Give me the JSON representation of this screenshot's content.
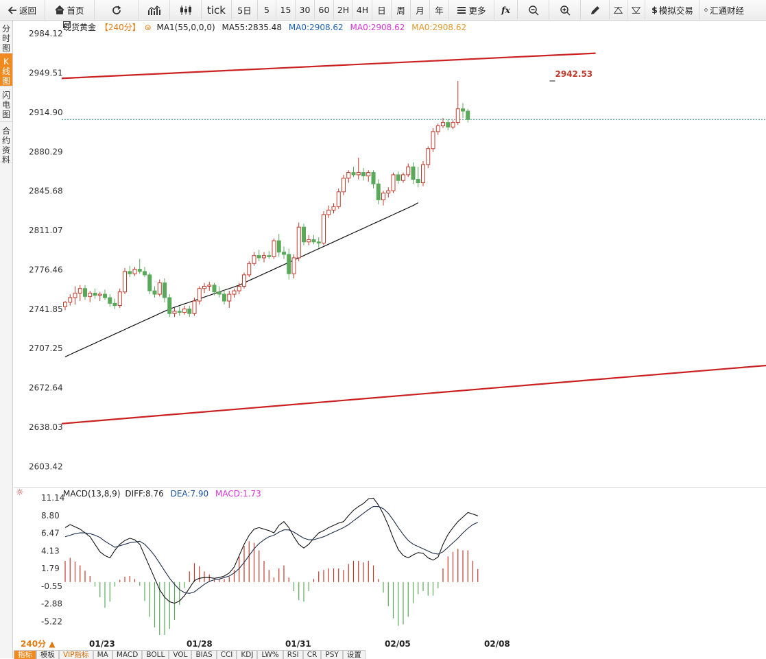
{
  "toolbar": {
    "back": "返回",
    "home": "首页",
    "tick": "tick",
    "periods": [
      "5日",
      "5",
      "15",
      "30",
      "60",
      "2H",
      "4H",
      "日",
      "周",
      "月",
      "年"
    ],
    "more": "更多",
    "fx": "fx",
    "sim_trade": "模拟交易",
    "broker": "汇通财经"
  },
  "sidebar": {
    "tabs": [
      {
        "label": "分时图",
        "active": false
      },
      {
        "label": "K线图",
        "active": true
      },
      {
        "label": "闪电图",
        "active": false
      },
      {
        "label": "合约资料",
        "active": false
      }
    ]
  },
  "main_legend": {
    "symbol": "现货黄金",
    "period": "【240分】",
    "ma1": "MA1(55,0,0,0)",
    "ma55": "MA55:2835.48",
    "ma0_a": "MA0:2908.62",
    "ma0_b": "MA0:2908.62",
    "ma0_c": "MA0:2908.62"
  },
  "macd_legend": {
    "name": "MACD(13,8,9)",
    "diff": "DIFF:8.76",
    "dea": "DEA:7.90",
    "macd": "MACD:1.73"
  },
  "high_label": "2942.53",
  "bottom": {
    "period_label": "240分 ▲",
    "dates": [
      "01/23",
      "01/28",
      "01/31",
      "02/05",
      "02/08"
    ],
    "indicator_tabs": [
      {
        "label": "指标",
        "active": true
      },
      {
        "label": "模板",
        "active": false
      },
      {
        "label": "VIP指标",
        "active": false,
        "vip": true
      },
      {
        "label": "MA",
        "active": false
      },
      {
        "label": "MACD",
        "active": false
      },
      {
        "label": "BOLL",
        "active": false
      },
      {
        "label": "VOL",
        "active": false
      },
      {
        "label": "BIAS",
        "active": false
      },
      {
        "label": "CCI",
        "active": false
      },
      {
        "label": "KDJ",
        "active": false
      },
      {
        "label": "LW%",
        "active": false
      },
      {
        "label": "RSI",
        "active": false
      },
      {
        "label": "CR",
        "active": false
      },
      {
        "label": "PSY",
        "active": false
      },
      {
        "label": "设置",
        "active": false
      }
    ]
  },
  "colors": {
    "up": "#c0392b",
    "down": "#5aa95a",
    "channel": "#cc1f1f",
    "ma0": "#1a5fb4",
    "macd": "#d633d6",
    "ma0c": "#e0982a",
    "accent": "#f08a1e"
  },
  "chart_data": [
    {
      "type": "candlestick",
      "title": "",
      "y_ticks": [
        2984.12,
        2949.51,
        2914.9,
        2880.29,
        2845.68,
        2811.07,
        2776.46,
        2741.85,
        2707.25,
        2672.64,
        2638.03,
        2603.42
      ],
      "ylim": [
        2585,
        2995
      ],
      "x_labels": [
        "01/23",
        "01/28",
        "01/31",
        "02/05",
        "02/08"
      ],
      "x_label_index": [
        6,
        26,
        47,
        68,
        89
      ],
      "current_price_line": 2908.62,
      "annotations": [
        {
          "text": "2942.53",
          "index": 98,
          "value": 2942.53
        }
      ],
      "channel_lines": [
        {
          "x_start": -0.7,
          "y_start": 2944.8,
          "x_end": 106.7,
          "y_end": 2966.9
        },
        {
          "x_start": -0.7,
          "y_start": 2641.2,
          "x_end": 150,
          "y_end": 2695.6
        }
      ],
      "ohlc": [
        [
          2744.0,
          2749.0,
          2741.0,
          2748.0
        ],
        [
          2748.0,
          2755.0,
          2745.0,
          2752.0
        ],
        [
          2752.0,
          2762.0,
          2746.0,
          2756.0
        ],
        [
          2756.0,
          2763.0,
          2749.0,
          2760.0
        ],
        [
          2760.0,
          2763.0,
          2750.0,
          2753.0
        ],
        [
          2753.0,
          2758.0,
          2748.0,
          2756.0
        ],
        [
          2756.0,
          2760.0,
          2751.0,
          2754.0
        ],
        [
          2754.0,
          2757.0,
          2749.0,
          2755.0
        ],
        [
          2755.0,
          2759.0,
          2750.0,
          2752.0
        ],
        [
          2752.0,
          2755.0,
          2744.0,
          2747.0
        ],
        [
          2747.0,
          2751.0,
          2742.0,
          2745.0
        ],
        [
          2745.0,
          2760.0,
          2743.0,
          2757.0
        ],
        [
          2757.0,
          2778.0,
          2755.0,
          2775.0
        ],
        [
          2775.0,
          2780.0,
          2770.0,
          2773.0
        ],
        [
          2773.0,
          2779.0,
          2771.0,
          2777.0
        ],
        [
          2777.0,
          2786.0,
          2773.0,
          2775.0
        ],
        [
          2775.0,
          2779.0,
          2770.0,
          2772.0
        ],
        [
          2772.0,
          2774.0,
          2755.0,
          2758.0
        ],
        [
          2758.0,
          2762.0,
          2752.0,
          2755.0
        ],
        [
          2755.0,
          2768.0,
          2753.0,
          2765.0
        ],
        [
          2765.0,
          2769.0,
          2748.0,
          2752.0
        ],
        [
          2752.0,
          2755.0,
          2735.0,
          2738.0
        ],
        [
          2738.0,
          2743.0,
          2735.0,
          2740.0
        ],
        [
          2740.0,
          2744.0,
          2736.0,
          2739.0
        ],
        [
          2739.0,
          2745.0,
          2737.0,
          2742.0
        ],
        [
          2742.0,
          2745.0,
          2735.0,
          2738.0
        ],
        [
          2738.0,
          2752.0,
          2736.0,
          2749.0
        ],
        [
          2749.0,
          2762.0,
          2746.0,
          2760.0
        ],
        [
          2760.0,
          2765.0,
          2756.0,
          2762.0
        ],
        [
          2762.0,
          2766.0,
          2758.0,
          2763.0
        ],
        [
          2763.0,
          2765.0,
          2754.0,
          2757.0
        ],
        [
          2757.0,
          2762.0,
          2752.0,
          2755.0
        ],
        [
          2755.0,
          2759.0,
          2746.0,
          2749.0
        ],
        [
          2749.0,
          2758.0,
          2743.0,
          2755.0
        ],
        [
          2755.0,
          2760.0,
          2752.0,
          2758.0
        ],
        [
          2758.0,
          2765.0,
          2755.0,
          2762.0
        ],
        [
          2762.0,
          2774.0,
          2760.0,
          2772.0
        ],
        [
          2772.0,
          2784.0,
          2770.0,
          2782.0
        ],
        [
          2782.0,
          2792.0,
          2780.0,
          2789.0
        ],
        [
          2789.0,
          2794.0,
          2784.0,
          2787.0
        ],
        [
          2787.0,
          2792.0,
          2783.0,
          2789.0
        ],
        [
          2789.0,
          2793.0,
          2786.0,
          2788.0
        ],
        [
          2788.0,
          2804.0,
          2786.0,
          2802.0
        ],
        [
          2802.0,
          2808.0,
          2788.0,
          2792.0
        ],
        [
          2792.0,
          2797.0,
          2786.0,
          2790.0
        ],
        [
          2790.0,
          2795.0,
          2768.0,
          2773.0
        ],
        [
          2773.0,
          2790.0,
          2769.0,
          2787.0
        ],
        [
          2787.0,
          2818.0,
          2784.0,
          2814.0
        ],
        [
          2814.0,
          2817.0,
          2798.0,
          2801.0
        ],
        [
          2801.0,
          2807.0,
          2798.0,
          2803.0
        ],
        [
          2803.0,
          2807.0,
          2799.0,
          2801.0
        ],
        [
          2801.0,
          2805.0,
          2796.0,
          2800.0
        ],
        [
          2800.0,
          2828.0,
          2798.0,
          2825.0
        ],
        [
          2825.0,
          2833.0,
          2822.0,
          2829.0
        ],
        [
          2829.0,
          2835.0,
          2826.0,
          2832.0
        ],
        [
          2832.0,
          2848.0,
          2830.0,
          2845.0
        ],
        [
          2845.0,
          2860.0,
          2842.0,
          2857.0
        ],
        [
          2857.0,
          2864.0,
          2853.0,
          2862.0
        ],
        [
          2862.0,
          2867.0,
          2858.0,
          2860.0
        ],
        [
          2860.0,
          2875.0,
          2856.0,
          2862.0
        ],
        [
          2862.0,
          2866.0,
          2855.0,
          2859.0
        ],
        [
          2859.0,
          2864.0,
          2854.0,
          2862.0
        ],
        [
          2862.0,
          2864.0,
          2848.0,
          2852.0
        ],
        [
          2852.0,
          2856.0,
          2834.0,
          2838.0
        ],
        [
          2838.0,
          2846.0,
          2833.0,
          2844.0
        ],
        [
          2844.0,
          2849.0,
          2840.0,
          2846.0
        ],
        [
          2846.0,
          2862.0,
          2844.0,
          2860.0
        ],
        [
          2860.0,
          2863.0,
          2852.0,
          2855.0
        ],
        [
          2855.0,
          2862.0,
          2853.0,
          2860.0
        ],
        [
          2860.0,
          2870.0,
          2858.0,
          2867.0
        ],
        [
          2867.0,
          2871.0,
          2852.0,
          2856.0
        ],
        [
          2856.0,
          2867.0,
          2849.0,
          2853.0
        ],
        [
          2853.0,
          2872.0,
          2850.0,
          2869.0
        ],
        [
          2869.0,
          2885.0,
          2866.0,
          2883.0
        ],
        [
          2883.0,
          2901.0,
          2880.0,
          2898.0
        ],
        [
          2898.0,
          2905.0,
          2895.0,
          2903.0
        ],
        [
          2903.0,
          2910.0,
          2901.0,
          2906.0
        ],
        [
          2906.0,
          2909.0,
          2899.0,
          2902.0
        ],
        [
          2902.0,
          2908.0,
          2900.0,
          2906.0
        ],
        [
          2906.0,
          2942.53,
          2904.0,
          2918.0
        ],
        [
          2918.0,
          2923.0,
          2910.0,
          2916.0
        ],
        [
          2916.0,
          2918.0,
          2906.0,
          2908.62
        ]
      ],
      "ma55": [
        2700.0,
        2702.0,
        2704.0,
        2706.0,
        2708.0,
        2710.0,
        2712.0,
        2714.0,
        2716.0,
        2718.0,
        2720.0,
        2722.0,
        2724.0,
        2726.0,
        2728.0,
        2730.0,
        2732.0,
        2734.0,
        2736.0,
        2738.0,
        2740.0,
        2742.0,
        2743.5,
        2745.0,
        2746.5,
        2748.0,
        2749.5,
        2751.0,
        2752.5,
        2754.0,
        2755.5,
        2757.0,
        2758.5,
        2760.0,
        2761.5,
        2763.0,
        2765.0,
        2767.0,
        2769.0,
        2771.0,
        2773.0,
        2775.0,
        2777.0,
        2779.0,
        2781.0,
        2783.0,
        2785.0,
        2787.0,
        2789.0,
        2791.0,
        2793.0,
        2795.0,
        2797.0,
        2799.0,
        2801.0,
        2803.0,
        2805.0,
        2807.0,
        2809.0,
        2811.0,
        2813.0,
        2815.0,
        2817.0,
        2819.0,
        2821.0,
        2823.0,
        2825.0,
        2827.0,
        2829.0,
        2831.0,
        2833.0,
        2835.48
      ],
      "ma55_start_index": 0
    },
    {
      "type": "macd",
      "y_ticks": [
        11.14,
        8.8,
        6.47,
        4.13,
        1.79,
        -0.55,
        -2.88,
        -5.22
      ],
      "ylim": [
        -8.0,
        12.5
      ],
      "diff": [
        7.2,
        7.6,
        7.3,
        7.0,
        6.5,
        6.0,
        5.0,
        4.0,
        3.5,
        3.2,
        4.2,
        5.0,
        5.5,
        5.8,
        5.6,
        5.0,
        3.5,
        2.0,
        0.5,
        -1.0,
        -2.0,
        -2.6,
        -2.8,
        -2.5,
        -1.8,
        -0.8,
        0.2,
        0.5,
        0.6,
        0.6,
        0.5,
        0.6,
        0.8,
        1.2,
        2.0,
        3.5,
        5.0,
        6.2,
        7.0,
        7.2,
        7.0,
        6.8,
        6.5,
        7.5,
        8.0,
        7.2,
        6.0,
        5.0,
        4.5,
        5.0,
        5.8,
        6.5,
        6.8,
        7.2,
        7.5,
        7.8,
        8.0,
        8.8,
        9.5,
        10.0,
        10.4,
        11.0,
        11.1,
        10.2,
        9.0,
        7.5,
        5.8,
        4.3,
        3.5,
        3.2,
        3.6,
        3.9,
        3.8,
        3.2,
        2.9,
        3.3,
        5.0,
        6.3,
        7.2,
        8.0,
        8.6,
        9.2,
        9.0,
        8.76
      ],
      "dea": [
        6.0,
        6.2,
        6.4,
        6.5,
        6.5,
        6.4,
        6.2,
        5.9,
        5.4,
        5.0,
        4.6,
        4.8,
        5.0,
        5.2,
        5.3,
        5.4,
        5.0,
        4.3,
        3.5,
        2.5,
        1.5,
        0.5,
        -0.3,
        -1.0,
        -1.4,
        -1.5,
        -1.3,
        -0.8,
        -0.3,
        0.1,
        0.3,
        0.4,
        0.6,
        0.8,
        1.2,
        1.8,
        2.6,
        3.5,
        4.4,
        5.1,
        5.6,
        6.0,
        6.2,
        6.6,
        6.9,
        6.9,
        6.6,
        6.2,
        5.8,
        5.6,
        5.6,
        5.8,
        6.0,
        6.3,
        6.6,
        6.9,
        7.2,
        7.6,
        8.1,
        8.6,
        9.1,
        9.6,
        10.0,
        10.0,
        9.7,
        9.1,
        8.2,
        7.2,
        6.3,
        5.5,
        5.0,
        4.7,
        4.4,
        4.1,
        3.8,
        3.7,
        4.0,
        4.6,
        5.2,
        5.8,
        6.5,
        7.1,
        7.6,
        7.9
      ],
      "macd_hist": [
        2.8,
        3.2,
        2.7,
        2.2,
        1.5,
        0.8,
        -0.6,
        -2.0,
        -3.4,
        -2.6,
        -0.6,
        0.3,
        0.7,
        0.8,
        0.4,
        -0.5,
        -2.5,
        -4.6,
        -6.0,
        -7.0,
        -7.0,
        -6.2,
        -5.0,
        -3.0,
        -0.8,
        1.4,
        2.5,
        2.1,
        1.4,
        1.0,
        0.4,
        0.4,
        0.4,
        0.7,
        1.6,
        3.4,
        4.8,
        5.4,
        5.2,
        4.2,
        2.8,
        1.6,
        0.6,
        1.8,
        2.2,
        0.6,
        -1.2,
        -2.4,
        -2.6,
        -1.2,
        0.4,
        1.4,
        1.6,
        1.8,
        1.8,
        1.8,
        1.6,
        2.4,
        2.8,
        2.8,
        2.6,
        2.8,
        2.2,
        0.4,
        -1.4,
        -3.2,
        -4.8,
        -5.8,
        -5.6,
        -4.6,
        -2.8,
        -1.6,
        -1.2,
        -1.8,
        -1.8,
        -0.8,
        1.8,
        3.4,
        4.0,
        4.4,
        4.2,
        4.2,
        2.8,
        1.73
      ]
    }
  ]
}
